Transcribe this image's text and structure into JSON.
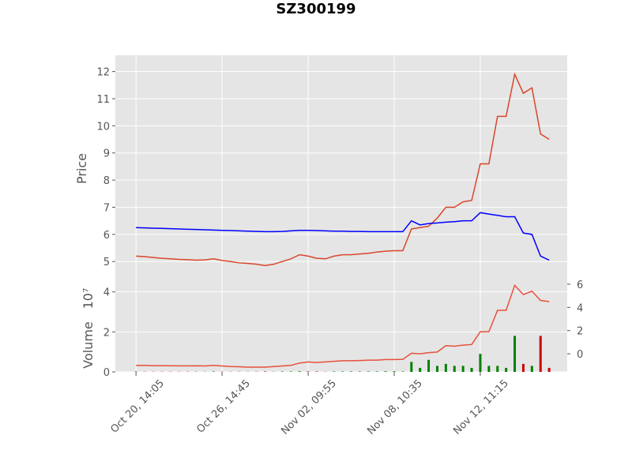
{
  "chart_data": [
    {
      "type": "line",
      "title": "SZ300199",
      "y_label": "Price",
      "x": [
        0,
        10,
        20,
        30,
        40,
        50,
        60,
        70,
        80,
        90,
        100,
        110,
        120,
        130,
        140,
        150,
        160,
        170,
        180,
        190,
        200,
        210,
        220,
        230,
        240,
        250,
        260,
        270,
        280,
        290,
        300,
        310,
        320,
        330,
        340,
        350,
        360,
        370,
        380,
        390,
        400,
        410,
        420,
        430,
        440,
        450,
        460,
        470,
        480
      ],
      "series": [
        {
          "color": "#d9462b",
          "values": [
            5.2,
            5.18,
            5.15,
            5.12,
            5.1,
            5.08,
            5.07,
            5.05,
            5.06,
            5.1,
            5.04,
            5.0,
            4.95,
            4.93,
            4.9,
            4.85,
            4.9,
            5.0,
            5.1,
            5.25,
            5.2,
            5.12,
            5.1,
            5.2,
            5.25,
            5.25,
            5.28,
            5.3,
            5.35,
            5.38,
            5.4,
            5.4,
            6.2,
            6.25,
            6.3,
            6.6,
            7.0,
            7.0,
            7.2,
            7.25,
            8.6,
            8.6,
            10.35,
            10.35,
            11.9,
            11.2,
            11.4,
            9.7,
            9.5
          ]
        },
        {
          "color": "#0000ff",
          "values": [
            6.25,
            6.24,
            6.23,
            6.22,
            6.21,
            6.2,
            6.19,
            6.18,
            6.17,
            6.16,
            6.15,
            6.14,
            6.13,
            6.12,
            6.11,
            6.1,
            6.1,
            6.11,
            6.13,
            6.15,
            6.15,
            6.14,
            6.13,
            6.12,
            6.12,
            6.11,
            6.11,
            6.1,
            6.1,
            6.1,
            6.1,
            6.1,
            6.5,
            6.35,
            6.4,
            6.42,
            6.45,
            6.47,
            6.5,
            6.5,
            6.8,
            6.75,
            6.7,
            6.65,
            6.65,
            6.05,
            6.0,
            5.2,
            5.05
          ]
        }
      ],
      "xlim": [
        -24,
        501
      ],
      "ylim": [
        4.25,
        12.6
      ],
      "yticks": [
        5,
        6,
        7,
        8,
        9,
        10,
        11,
        12
      ],
      "grid": true
    },
    {
      "type": "bar",
      "y_label": "Volume",
      "y_offset_label": "10⁷",
      "x": [
        0,
        10,
        20,
        30,
        40,
        50,
        60,
        70,
        80,
        90,
        100,
        110,
        120,
        130,
        140,
        150,
        160,
        170,
        180,
        190,
        200,
        210,
        220,
        230,
        240,
        250,
        260,
        270,
        280,
        290,
        300,
        310,
        320,
        330,
        340,
        350,
        360,
        370,
        380,
        390,
        400,
        410,
        420,
        430,
        440,
        450,
        460,
        470,
        480
      ],
      "up_color": "#008000",
      "down_color": "#cc0000",
      "series": [
        {
          "values": [
            0.02,
            0.01,
            0.01,
            0.01,
            0.01,
            0.01,
            0.01,
            0.01,
            0.01,
            0.02,
            0.01,
            0.01,
            0.01,
            0.01,
            0.01,
            0.02,
            0.01,
            0.02,
            0.02,
            0.03,
            0.02,
            0.02,
            0.01,
            0.02,
            0.02,
            0.02,
            0.02,
            0.02,
            0.02,
            0.03,
            0.03,
            0.02,
            0.5,
            0.2,
            0.6,
            0.3,
            0.4,
            0.3,
            0.3,
            0.2,
            0.9,
            0.3,
            0.3,
            0.2,
            1.8,
            0.4,
            0.3,
            1.8,
            0.2
          ]
        },
        {
          "axis": "y2",
          "color": "#e8503a",
          "values": [
            -1.0,
            -1.0,
            -1.02,
            -1.02,
            -1.03,
            -1.04,
            -1.04,
            -1.03,
            -1.05,
            -1.0,
            -1.05,
            -1.1,
            -1.12,
            -1.15,
            -1.15,
            -1.15,
            -1.1,
            -1.05,
            -1.0,
            -0.8,
            -0.7,
            -0.75,
            -0.7,
            -0.65,
            -0.6,
            -0.6,
            -0.58,
            -0.55,
            -0.55,
            -0.5,
            -0.5,
            -0.48,
            0.05,
            0.0,
            0.1,
            0.15,
            0.7,
            0.65,
            0.75,
            0.8,
            1.9,
            1.9,
            3.75,
            3.75,
            5.9,
            5.1,
            5.4,
            4.6,
            4.5
          ]
        }
      ],
      "xlim": [
        -24,
        501
      ],
      "ylim": [
        0,
        4.5
      ],
      "yticks": [
        0,
        2,
        4
      ],
      "y2lim": [
        -1.56,
        6.2
      ],
      "y2ticks": [
        0,
        2,
        4,
        6
      ],
      "xticks": [
        {
          "value": 0,
          "label": "Oct 20, 14:05"
        },
        {
          "value": 100,
          "label": "Oct 26, 14:45"
        },
        {
          "value": 200,
          "label": "Nov 02, 09:55"
        },
        {
          "value": 300,
          "label": "Nov 08, 10:35"
        },
        {
          "value": 400,
          "label": "Nov 12, 11:15"
        }
      ],
      "grid": true
    }
  ]
}
